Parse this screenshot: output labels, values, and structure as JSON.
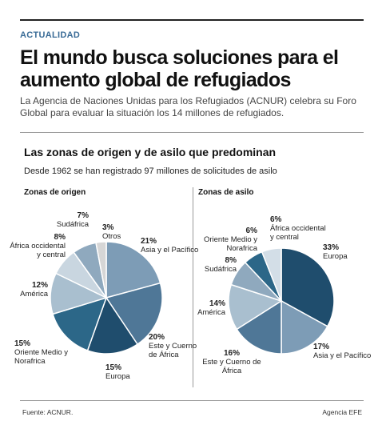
{
  "header": {
    "section": "ACTUALIDAD",
    "title": "El mundo busca soluciones para el aumento global de refugiados",
    "subtitle": "La Agencia de Naciones Unidas para los Refugiados (ACNUR) celebra su Foro Global para evaluar la situación los 14 millones de refugiados."
  },
  "section_title": "Las zonas de origen y de asilo que predominan",
  "section_subtitle": "Desde 1962 se han registrado 97 millones de solicitudes de asilo",
  "chart_data": [
    {
      "type": "pie",
      "title": "Zonas de origen",
      "categories": [
        "Asia y el Pacífico",
        "Este y Cuerno de África",
        "Europa",
        "Oriente Medio y Norafrica",
        "América",
        "África occidental y central",
        "Sudáfrica",
        "Otros"
      ],
      "values": [
        21,
        20,
        15,
        15,
        12,
        8,
        7,
        3
      ],
      "value_labels": [
        "21%",
        "20%",
        "15%",
        "15%",
        "12%",
        "8%",
        "7%",
        "3%"
      ],
      "colors": [
        "#7d9cb6",
        "#4f7797",
        "#1f4d6d",
        "#2c6788",
        "#a9bfcf",
        "#c9d6e0",
        "#8fa9be",
        "#d6d6d6"
      ]
    },
    {
      "type": "pie",
      "title": "Zonas de asilo",
      "categories": [
        "Europa",
        "Asia y el Pacífico",
        "Este y Cuerno de África",
        "América",
        "Sudáfrica",
        "Oriente Medio y Norafrica",
        "África occidental y central"
      ],
      "values": [
        33,
        17,
        16,
        14,
        8,
        6,
        6
      ],
      "value_labels": [
        "33%",
        "17%",
        "16%",
        "14%",
        "8%",
        "6%",
        "6%"
      ],
      "colors": [
        "#1f4d6d",
        "#7d9cb6",
        "#4f7797",
        "#a9bfcf",
        "#8fa9be",
        "#2c6788",
        "#d3dee7"
      ]
    }
  ],
  "footer": {
    "source": "Fuente: ACNUR.",
    "credit": "Agencia EFE"
  }
}
